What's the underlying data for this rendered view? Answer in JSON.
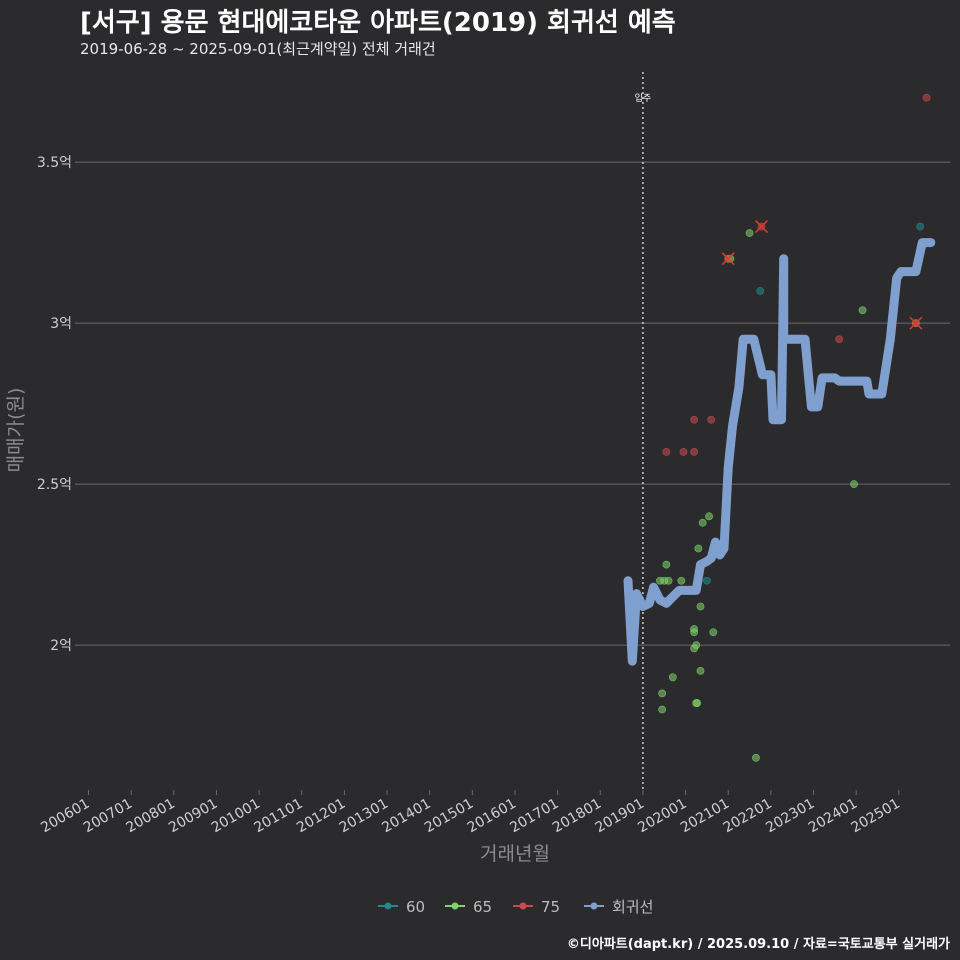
{
  "header": {
    "title": "[서구] 용문 현대에코타운 아파트(2019) 회귀선 예측",
    "subtitle": "2019-06-28 ~ 2025-09-01(최근계약일) 전체 거래건"
  },
  "caption": "©디아파트(dapt.kr) / 2025.09.10 / 자료=국토교통부 실거래가",
  "colors": {
    "background": "#2b2b2d",
    "grid": "#6a6a6a",
    "s60": "#1f8a8f",
    "s65": "#7fd36a",
    "s75": "#c94a4a",
    "regression": "#7f9fcf"
  },
  "chart_data": {
    "type": "scatter",
    "xlabel": "거래년월",
    "ylabel": "매매가(원)",
    "xlim": [
      2005.8,
      2026.2
    ],
    "ylim": [
      1.55,
      3.78
    ],
    "x_ticks": [
      {
        "v": 2006,
        "label": "200601"
      },
      {
        "v": 2007,
        "label": "200701"
      },
      {
        "v": 2008,
        "label": "200801"
      },
      {
        "v": 2009,
        "label": "200901"
      },
      {
        "v": 2010,
        "label": "201001"
      },
      {
        "v": 2011,
        "label": "201101"
      },
      {
        "v": 2012,
        "label": "201201"
      },
      {
        "v": 2013,
        "label": "201301"
      },
      {
        "v": 2014,
        "label": "201401"
      },
      {
        "v": 2015,
        "label": "201501"
      },
      {
        "v": 2016,
        "label": "201601"
      },
      {
        "v": 2017,
        "label": "201701"
      },
      {
        "v": 2018,
        "label": "201801"
      },
      {
        "v": 2019,
        "label": "201901"
      },
      {
        "v": 2020,
        "label": "202001"
      },
      {
        "v": 2021,
        "label": "202101"
      },
      {
        "v": 2022,
        "label": "202201"
      },
      {
        "v": 2023,
        "label": "202301"
      },
      {
        "v": 2024,
        "label": "202401"
      },
      {
        "v": 2025,
        "label": "202501"
      }
    ],
    "y_ticks": [
      {
        "v": 2.0,
        "label": "2억"
      },
      {
        "v": 2.5,
        "label": "2.5억"
      },
      {
        "v": 3.0,
        "label": "3억"
      },
      {
        "v": 3.5,
        "label": "3.5억"
      }
    ],
    "vline": {
      "x": 2019.0,
      "label": "입주"
    },
    "legend": [
      {
        "name": "60",
        "key": "s60"
      },
      {
        "name": "65",
        "key": "s65"
      },
      {
        "name": "75",
        "key": "s75"
      },
      {
        "name": "회귀선",
        "key": "regression"
      }
    ],
    "series": [
      {
        "name": "60",
        "key": "s60",
        "points": [
          [
            2020.5,
            2.2
          ],
          [
            2021.75,
            3.1
          ],
          [
            2025.5,
            3.3
          ]
        ]
      },
      {
        "name": "65",
        "key": "s65",
        "points": [
          [
            2019.4,
            2.2
          ],
          [
            2019.5,
            2.2
          ],
          [
            2019.55,
            2.25
          ],
          [
            2019.6,
            2.2
          ],
          [
            2019.7,
            1.9
          ],
          [
            2019.45,
            1.85
          ],
          [
            2019.45,
            1.8
          ],
          [
            2019.9,
            2.2
          ],
          [
            2020.2,
            2.05
          ],
          [
            2020.2,
            2.04
          ],
          [
            2020.2,
            1.99
          ],
          [
            2020.25,
            2.0
          ],
          [
            2020.3,
            2.3
          ],
          [
            2020.35,
            2.12
          ],
          [
            2020.35,
            1.92
          ],
          [
            2020.25,
            1.82
          ],
          [
            2020.27,
            1.82
          ],
          [
            2020.4,
            2.38
          ],
          [
            2020.55,
            2.4
          ],
          [
            2020.65,
            2.04
          ],
          [
            2021.0,
            3.2
          ],
          [
            2021.05,
            3.2
          ],
          [
            2021.5,
            3.28
          ],
          [
            2021.65,
            1.65
          ],
          [
            2023.95,
            2.5
          ],
          [
            2024.15,
            3.04
          ],
          [
            2025.4,
            3.0
          ]
        ]
      },
      {
        "name": "75",
        "key": "s75",
        "points": [
          [
            2019.55,
            2.6
          ],
          [
            2019.95,
            2.6
          ],
          [
            2020.2,
            2.6
          ],
          [
            2020.2,
            2.7
          ],
          [
            2020.6,
            2.7
          ],
          [
            2021.0,
            3.2
          ],
          [
            2021.78,
            3.3
          ],
          [
            2023.6,
            2.95
          ],
          [
            2025.4,
            3.0
          ],
          [
            2025.65,
            3.7
          ]
        ]
      }
    ],
    "excluded": [
      [
        2021.0,
        3.2
      ],
      [
        2021.78,
        3.3
      ],
      [
        2025.4,
        3.0
      ]
    ],
    "regression": [
      [
        2018.65,
        2.2
      ],
      [
        2018.75,
        1.95
      ],
      [
        2018.85,
        2.16
      ],
      [
        2019.0,
        2.12
      ],
      [
        2019.15,
        2.13
      ],
      [
        2019.25,
        2.18
      ],
      [
        2019.4,
        2.14
      ],
      [
        2019.55,
        2.13
      ],
      [
        2019.7,
        2.15
      ],
      [
        2019.85,
        2.17
      ],
      [
        2020.1,
        2.17
      ],
      [
        2020.25,
        2.17
      ],
      [
        2020.35,
        2.25
      ],
      [
        2020.5,
        2.26
      ],
      [
        2020.6,
        2.27
      ],
      [
        2020.7,
        2.32
      ],
      [
        2020.8,
        2.28
      ],
      [
        2020.9,
        2.3
      ],
      [
        2021.0,
        2.55
      ],
      [
        2021.1,
        2.68
      ],
      [
        2021.25,
        2.8
      ],
      [
        2021.35,
        2.95
      ],
      [
        2021.6,
        2.95
      ],
      [
        2021.8,
        2.84
      ],
      [
        2022.0,
        2.84
      ],
      [
        2022.05,
        2.7
      ],
      [
        2022.25,
        2.7
      ],
      [
        2022.3,
        3.2
      ],
      [
        2022.3,
        2.95
      ],
      [
        2022.8,
        2.95
      ],
      [
        2022.95,
        2.74
      ],
      [
        2023.1,
        2.74
      ],
      [
        2023.2,
        2.83
      ],
      [
        2023.5,
        2.83
      ],
      [
        2023.6,
        2.82
      ],
      [
        2024.25,
        2.82
      ],
      [
        2024.3,
        2.78
      ],
      [
        2024.6,
        2.78
      ],
      [
        2024.8,
        2.95
      ],
      [
        2024.95,
        3.14
      ],
      [
        2025.05,
        3.16
      ],
      [
        2025.4,
        3.16
      ],
      [
        2025.55,
        3.25
      ],
      [
        2025.75,
        3.25
      ]
    ]
  }
}
